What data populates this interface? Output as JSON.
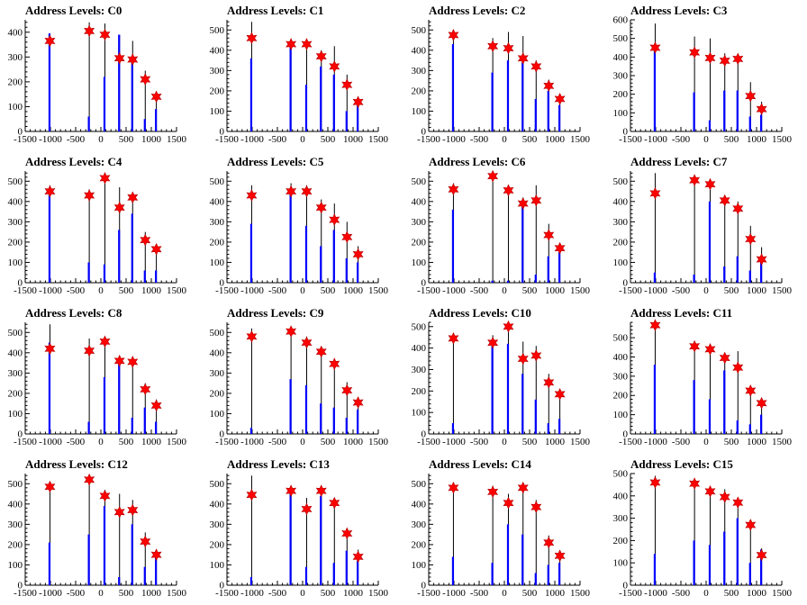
{
  "figure": {
    "series_colors": {
      "histogram": "#0000ff",
      "spike": "#000000",
      "marker": "#ff0000"
    }
  },
  "chart_data": [
    {
      "type": "bar",
      "title": "Address Levels: C0",
      "xlim": [
        -1500,
        1500
      ],
      "ylim": [
        0,
        450
      ],
      "xticks": [
        "-1500",
        "-1000",
        "-500",
        "0",
        "500",
        "1000",
        "1500"
      ],
      "yticks": [
        "0",
        "100",
        "200",
        "300",
        "400"
      ],
      "x": [
        -1010,
        -230,
        80,
        370,
        630,
        880,
        1100
      ],
      "spike_values": [
        395,
        440,
        435,
        390,
        365,
        245,
        150
      ],
      "histogram_values": [
        395,
        60,
        220,
        390,
        290,
        50,
        90
      ],
      "marker_values": [
        365,
        405,
        390,
        295,
        290,
        210,
        140
      ]
    },
    {
      "type": "bar",
      "title": "Address Levels: C1",
      "xlim": [
        -1500,
        1500
      ],
      "ylim": [
        0,
        550
      ],
      "xticks": [
        "-1500",
        "-1000",
        "-500",
        "0",
        "500",
        "1000",
        "1500"
      ],
      "yticks": [
        "0",
        "100",
        "200",
        "300",
        "400",
        "500"
      ],
      "x": [
        -1010,
        -230,
        80,
        370,
        630,
        880,
        1100
      ],
      "spike_values": [
        540,
        450,
        440,
        400,
        420,
        280,
        170
      ],
      "histogram_values": [
        360,
        420,
        230,
        320,
        280,
        100,
        130
      ],
      "marker_values": [
        460,
        430,
        430,
        370,
        320,
        230,
        145
      ]
    },
    {
      "type": "bar",
      "title": "Address Levels: C2",
      "xlim": [
        -1500,
        1500
      ],
      "ylim": [
        0,
        550
      ],
      "xticks": [
        "-1500",
        "-1000",
        "-500",
        "0",
        "500",
        "1000",
        "1500"
      ],
      "yticks": [
        "0",
        "100",
        "200",
        "300",
        "400",
        "500"
      ],
      "x": [
        -1010,
        -230,
        80,
        370,
        630,
        880,
        1100
      ],
      "spike_values": [
        500,
        460,
        490,
        470,
        350,
        255,
        175
      ],
      "histogram_values": [
        430,
        290,
        350,
        340,
        160,
        200,
        130
      ],
      "marker_values": [
        475,
        420,
        410,
        360,
        320,
        225,
        160
      ]
    },
    {
      "type": "bar",
      "title": "Address Levels: C3",
      "xlim": [
        -1500,
        1500
      ],
      "ylim": [
        0,
        600
      ],
      "xticks": [
        "-1500",
        "-1000",
        "-500",
        "0",
        "500",
        "1000",
        "1500"
      ],
      "yticks": [
        "0",
        "100",
        "200",
        "300",
        "400",
        "500",
        "600"
      ],
      "x": [
        -1010,
        -230,
        80,
        370,
        630,
        880,
        1100
      ],
      "spike_values": [
        580,
        510,
        500,
        420,
        400,
        265,
        160
      ],
      "histogram_values": [
        440,
        210,
        60,
        220,
        220,
        80,
        90
      ],
      "marker_values": [
        450,
        425,
        395,
        380,
        390,
        190,
        120
      ]
    },
    {
      "type": "bar",
      "title": "Address Levels: C4",
      "xlim": [
        -1500,
        1500
      ],
      "ylim": [
        0,
        550
      ],
      "xticks": [
        "-1500",
        "-1000",
        "-500",
        "0",
        "500",
        "1000",
        "1500"
      ],
      "yticks": [
        "0",
        "100",
        "200",
        "300",
        "400",
        "500"
      ],
      "x": [
        -1010,
        -230,
        80,
        370,
        630,
        880,
        1100
      ],
      "spike_values": [
        480,
        460,
        530,
        470,
        430,
        250,
        180
      ],
      "histogram_values": [
        460,
        100,
        90,
        260,
        340,
        60,
        60
      ],
      "marker_values": [
        450,
        430,
        515,
        370,
        420,
        210,
        165
      ]
    },
    {
      "type": "bar",
      "title": "Address Levels: C5",
      "xlim": [
        -1500,
        1500
      ],
      "ylim": [
        0,
        550
      ],
      "xticks": [
        "-1500",
        "-1000",
        "-500",
        "0",
        "500",
        "1000",
        "1500"
      ],
      "yticks": [
        "0",
        "100",
        "200",
        "300",
        "400",
        "500"
      ],
      "x": [
        -1010,
        -230,
        80,
        370,
        630,
        880,
        1100
      ],
      "spike_values": [
        480,
        490,
        480,
        410,
        390,
        300,
        180
      ],
      "histogram_values": [
        290,
        440,
        280,
        180,
        260,
        120,
        100
      ],
      "marker_values": [
        430,
        450,
        450,
        370,
        310,
        225,
        140
      ]
    },
    {
      "type": "bar",
      "title": "Address Levels: C6",
      "xlim": [
        -1500,
        1500
      ],
      "ylim": [
        0,
        550
      ],
      "xticks": [
        "-1500",
        "-1000",
        "-500",
        "0",
        "500",
        "1000",
        "1500"
      ],
      "yticks": [
        "0",
        "100",
        "200",
        "300",
        "400",
        "500"
      ],
      "x": [
        -1010,
        -230,
        80,
        370,
        630,
        880,
        1100
      ],
      "spike_values": [
        490,
        550,
        480,
        420,
        480,
        290,
        190
      ],
      "histogram_values": [
        360,
        10,
        10,
        390,
        40,
        130,
        150
      ],
      "marker_values": [
        460,
        525,
        455,
        390,
        405,
        235,
        170
      ]
    },
    {
      "type": "bar",
      "title": "Address Levels: C7",
      "xlim": [
        -1500,
        1500
      ],
      "ylim": [
        0,
        550
      ],
      "xticks": [
        "-1500",
        "-1000",
        "-500",
        "0",
        "500",
        "1000",
        "1500"
      ],
      "yticks": [
        "0",
        "100",
        "200",
        "300",
        "400",
        "500"
      ],
      "x": [
        -1010,
        -230,
        80,
        370,
        630,
        880,
        1100
      ],
      "spike_values": [
        540,
        510,
        500,
        430,
        400,
        280,
        175
      ],
      "histogram_values": [
        50,
        40,
        400,
        80,
        130,
        60,
        120
      ],
      "marker_values": [
        440,
        505,
        485,
        405,
        365,
        215,
        115
      ]
    },
    {
      "type": "bar",
      "title": "Address Levels: C8",
      "xlim": [
        -1500,
        1500
      ],
      "ylim": [
        0,
        550
      ],
      "xticks": [
        "-1500",
        "-1000",
        "-500",
        "0",
        "500",
        "1000",
        "1500"
      ],
      "yticks": [
        "0",
        "100",
        "200",
        "300",
        "400",
        "500"
      ],
      "x": [
        -1010,
        -230,
        80,
        370,
        630,
        880,
        1100
      ],
      "spike_values": [
        540,
        470,
        480,
        380,
        370,
        250,
        170
      ],
      "histogram_values": [
        450,
        60,
        280,
        360,
        80,
        130,
        60
      ],
      "marker_values": [
        420,
        410,
        455,
        360,
        355,
        220,
        140
      ]
    },
    {
      "type": "bar",
      "title": "Address Levels: C9",
      "xlim": [
        -1500,
        1500
      ],
      "ylim": [
        0,
        550
      ],
      "xticks": [
        "-1500",
        "-1000",
        "-500",
        "0",
        "500",
        "1000",
        "1500"
      ],
      "yticks": [
        "0",
        "100",
        "200",
        "300",
        "400",
        "500"
      ],
      "x": [
        -1010,
        -230,
        80,
        370,
        630,
        880,
        1100
      ],
      "spike_values": [
        520,
        510,
        480,
        430,
        360,
        255,
        180
      ],
      "histogram_values": [
        30,
        270,
        240,
        150,
        130,
        80,
        120
      ],
      "marker_values": [
        480,
        505,
        450,
        405,
        345,
        215,
        155
      ]
    },
    {
      "type": "bar",
      "title": "Address Levels: C10",
      "xlim": [
        -1500,
        1500
      ],
      "ylim": [
        0,
        520
      ],
      "xticks": [
        "-1500",
        "-1000",
        "-500",
        "0",
        "500",
        "1000",
        "1500"
      ],
      "yticks": [
        "0",
        "100",
        "200",
        "300",
        "400",
        "500"
      ],
      "x": [
        -1010,
        -230,
        80,
        370,
        630,
        880,
        1100
      ],
      "spike_values": [
        470,
        460,
        520,
        430,
        410,
        280,
        180
      ],
      "histogram_values": [
        50,
        440,
        420,
        280,
        160,
        50,
        70
      ],
      "marker_values": [
        445,
        425,
        500,
        350,
        365,
        240,
        185
      ]
    },
    {
      "type": "bar",
      "title": "Address Levels: C11",
      "xlim": [
        -1500,
        1500
      ],
      "ylim": [
        0,
        580
      ],
      "xticks": [
        "-1500",
        "-1000",
        "-500",
        "0",
        "500",
        "1000",
        "1500"
      ],
      "yticks": [
        "0",
        "100",
        "200",
        "300",
        "400",
        "500"
      ],
      "x": [
        -1010,
        -230,
        80,
        370,
        630,
        880,
        1100
      ],
      "spike_values": [
        580,
        470,
        460,
        420,
        430,
        250,
        180
      ],
      "histogram_values": [
        360,
        280,
        180,
        330,
        70,
        50,
        100
      ],
      "marker_values": [
        565,
        455,
        440,
        395,
        345,
        225,
        160
      ]
    },
    {
      "type": "bar",
      "title": "Address Levels: C12",
      "xlim": [
        -1500,
        1500
      ],
      "ylim": [
        0,
        550
      ],
      "xticks": [
        "-1500",
        "-1000",
        "-500",
        "0",
        "500",
        "1000",
        "1500"
      ],
      "yticks": [
        "0",
        "100",
        "200",
        "300",
        "400",
        "500"
      ],
      "x": [
        -1010,
        -230,
        80,
        370,
        630,
        880,
        1100
      ],
      "spike_values": [
        500,
        540,
        470,
        450,
        420,
        260,
        170
      ],
      "histogram_values": [
        210,
        250,
        390,
        40,
        300,
        90,
        150
      ],
      "marker_values": [
        485,
        520,
        440,
        360,
        370,
        215,
        150
      ]
    },
    {
      "type": "bar",
      "title": "Address Levels: C13",
      "xlim": [
        -1500,
        1500
      ],
      "ylim": [
        0,
        550
      ],
      "xticks": [
        "-1500",
        "-1000",
        "-500",
        "0",
        "500",
        "1000",
        "1500"
      ],
      "yticks": [
        "0",
        "100",
        "200",
        "300",
        "400",
        "500"
      ],
      "x": [
        -1010,
        -230,
        80,
        370,
        630,
        880,
        1100
      ],
      "spike_values": [
        540,
        480,
        430,
        490,
        420,
        280,
        175
      ],
      "histogram_values": [
        40,
        460,
        90,
        440,
        110,
        170,
        120
      ],
      "marker_values": [
        445,
        465,
        375,
        465,
        405,
        255,
        140
      ]
    },
    {
      "type": "bar",
      "title": "Address Levels: C14",
      "xlim": [
        -1500,
        1500
      ],
      "ylim": [
        0,
        550
      ],
      "xticks": [
        "-1500",
        "-1000",
        "-500",
        "0",
        "500",
        "1000",
        "1500"
      ],
      "yticks": [
        "0",
        "100",
        "200",
        "300",
        "400",
        "500"
      ],
      "x": [
        -1010,
        -230,
        80,
        370,
        630,
        880,
        1100
      ],
      "spike_values": [
        500,
        490,
        450,
        490,
        420,
        245,
        170
      ],
      "histogram_values": [
        140,
        110,
        300,
        250,
        60,
        100,
        110
      ],
      "marker_values": [
        480,
        460,
        405,
        480,
        385,
        210,
        145
      ]
    },
    {
      "type": "bar",
      "title": "Address Levels: C15",
      "xlim": [
        -1500,
        1500
      ],
      "ylim": [
        0,
        500
      ],
      "xticks": [
        "-1500",
        "-1000",
        "-500",
        "0",
        "500",
        "1000",
        "1500"
      ],
      "yticks": [
        "0",
        "100",
        "200",
        "300",
        "400",
        "500"
      ],
      "x": [
        -1010,
        -230,
        80,
        370,
        630,
        880,
        1100
      ],
      "spike_values": [
        490,
        470,
        440,
        430,
        380,
        280,
        165
      ],
      "histogram_values": [
        140,
        200,
        180,
        240,
        300,
        100,
        160
      ],
      "marker_values": [
        460,
        455,
        420,
        395,
        370,
        270,
        135
      ]
    }
  ]
}
